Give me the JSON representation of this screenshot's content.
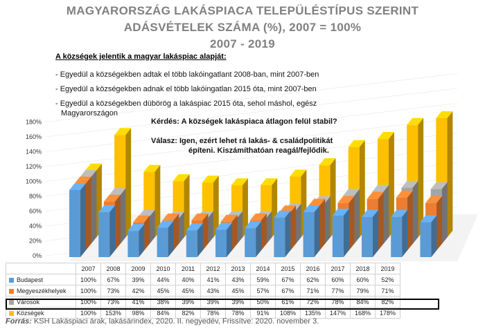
{
  "title": {
    "line1": "MAGYARORSZÁG LAKÁSPIACA TELEPÜLÉSTÍPUS SZERINT",
    "line2": "ADÁSVÉTELEK SZÁMA (%), 2007 = 100%",
    "line3": "2007 - 2019"
  },
  "notes": {
    "heading": "A községek jelentik a magyar lakáspiac alapját:",
    "bullet1": "- Egyedül a községekben adtak el több lakóingatlant 2008-ban, mint 2007-ben",
    "bullet2": "- Egyedül a községekben adnak el több lakóingatlan 2015 óta,   mint 2007-ben",
    "bullet3a": "- Egyedül a  községekben  dübörög  a lakáspiac  2015 óta, sehol máshol, egész",
    "bullet3b": "  Magyarországon"
  },
  "qa": {
    "question": "Kérdés: A községek lakáspiaca átlagon felül stabil?",
    "answer1": "Válasz:  Igen, ezért lehet rá lakás- & családpolitikát",
    "answer2": "építeni. Kiszámíthatóan reagál/fejlődik."
  },
  "footer": {
    "label": "Forrás:",
    "text": " KSH Lakáspiaci árak, lakásárindex, 2020. II. negyedév, Frissítve: 2020. november 3."
  },
  "chart_data": {
    "type": "bar",
    "categories": [
      "2007",
      "2008",
      "2009",
      "2010",
      "2011",
      "2012",
      "2013",
      "2014",
      "2015",
      "2016",
      "2017",
      "2018",
      "2019"
    ],
    "ylim": [
      0,
      1.8
    ],
    "yticks": [
      "0%",
      "20%",
      "40%",
      "60%",
      "80%",
      "100%",
      "120%",
      "140%",
      "160%",
      "180%"
    ],
    "series": [
      {
        "name": "Budapest",
        "color": "#5B9BD5",
        "values": [
          1.0,
          0.67,
          0.39,
          0.44,
          0.4,
          0.41,
          0.43,
          0.59,
          0.67,
          0.62,
          0.6,
          0.6,
          0.52
        ],
        "labels": [
          "100%",
          "67%",
          "39%",
          "44%",
          "40%",
          "41%",
          "43%",
          "59%",
          "67%",
          "62%",
          "60%",
          "60%",
          "52%"
        ]
      },
      {
        "name": "Megyeszékhelyek",
        "color": "#ED7D31",
        "values": [
          1.0,
          0.73,
          0.42,
          0.45,
          0.45,
          0.43,
          0.45,
          0.57,
          0.67,
          0.71,
          0.77,
          0.79,
          0.71
        ],
        "labels": [
          "100%",
          "73%",
          "42%",
          "45%",
          "45%",
          "43%",
          "45%",
          "57%",
          "67%",
          "71%",
          "77%",
          "79%",
          "71%"
        ]
      },
      {
        "name": "Városok",
        "color": "#A5A5A5",
        "values": [
          1.0,
          0.73,
          0.41,
          0.38,
          0.39,
          0.39,
          0.39,
          0.5,
          0.61,
          0.72,
          0.78,
          0.84,
          0.82
        ],
        "labels": [
          "100%",
          "73%",
          "41%",
          "38%",
          "39%",
          "39%",
          "39%",
          "50%",
          "61%",
          "72%",
          "78%",
          "84%",
          "82%"
        ]
      },
      {
        "name": "Községek",
        "color": "#FFC000",
        "values": [
          1.0,
          1.53,
          0.98,
          0.84,
          0.82,
          0.78,
          0.78,
          0.91,
          1.08,
          1.35,
          1.47,
          1.68,
          1.78
        ],
        "labels": [
          "100%",
          "153%",
          "98%",
          "84%",
          "82%",
          "78%",
          "78%",
          "91%",
          "108%",
          "135%",
          "147%",
          "168%",
          "178%"
        ]
      }
    ]
  }
}
